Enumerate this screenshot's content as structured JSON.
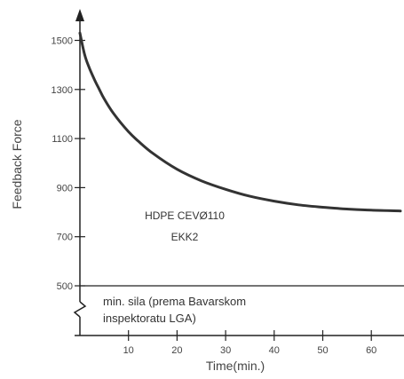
{
  "chart_data": {
    "type": "line",
    "xlabel": "Time(min.)",
    "ylabel": "Feedback Force",
    "x_ticks": [
      10,
      20,
      30,
      40,
      50,
      60
    ],
    "y_ticks": [
      500,
      700,
      900,
      1100,
      1300,
      1500
    ],
    "xlim": [
      0,
      66
    ],
    "ylim": [
      500,
      1550
    ],
    "series": [
      {
        "x": [
          0,
          1,
          2,
          3,
          4,
          5,
          7,
          10,
          12,
          15,
          20,
          25,
          30,
          35,
          40,
          45,
          50,
          55,
          60,
          66
        ],
        "y": [
          1530,
          1440,
          1385,
          1340,
          1300,
          1262,
          1200,
          1128,
          1090,
          1040,
          975,
          928,
          893,
          865,
          845,
          830,
          820,
          813,
          808,
          805
        ]
      }
    ],
    "annotations": {
      "series_label_line1": "HDPE CEVØ110",
      "series_label_line2": "EKK2",
      "min_line1": "min. sila (prema Bavarskom",
      "min_line2": "inspektoratu LGA)"
    },
    "colors": {
      "curve": "#333333",
      "axis": "#222222",
      "text": "#444444"
    }
  }
}
